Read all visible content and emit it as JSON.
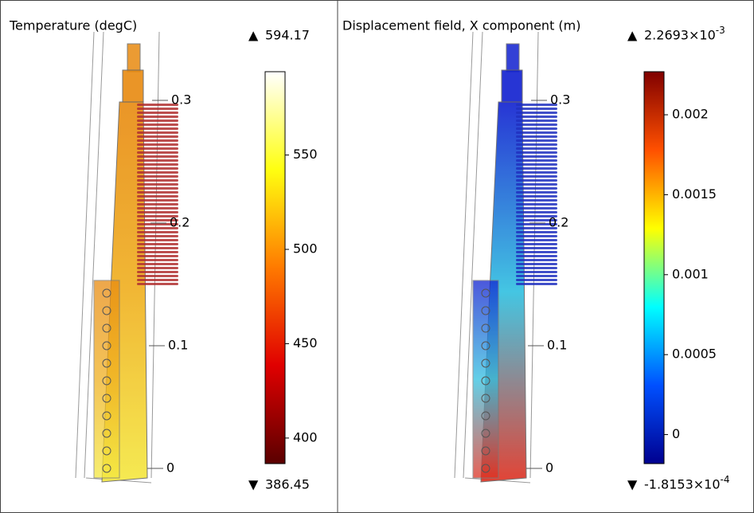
{
  "panels": [
    {
      "title": "Temperature (degC)",
      "range": [
        386.45,
        594.17
      ],
      "ticks": [
        400,
        450,
        500,
        550
      ],
      "colors": [
        "#5a0000",
        "#e00000",
        "#ff7a00",
        "#ffff10",
        "#ffffff"
      ],
      "body_colors": [
        "#e88a10",
        "#f0b020",
        "#f4e840"
      ],
      "fin_color": "#b03030",
      "z_ticks": [
        0,
        0.1,
        0.2,
        0.3
      ]
    },
    {
      "title": "Displacement field, X component (m)",
      "range": [
        {
          "value": -0.00018153,
          "label": "-1.8153×10",
          "exponent": "-4"
        },
        {
          "value": 0.0022693,
          "label": "2.2693×10",
          "exponent": "-3"
        }
      ],
      "ticks": [
        0,
        0.0005,
        0.001,
        0.0015,
        0.002
      ],
      "colors": [
        "#00008f",
        "#0050ff",
        "#00ffff",
        "#ffff00",
        "#ff5000",
        "#800000"
      ],
      "body_colors": [
        "#1020d0",
        "#30c0e0",
        "#e03020"
      ],
      "fin_color": "#2030c0",
      "z_ticks": [
        0,
        0.1,
        0.2,
        0.3
      ]
    }
  ]
}
